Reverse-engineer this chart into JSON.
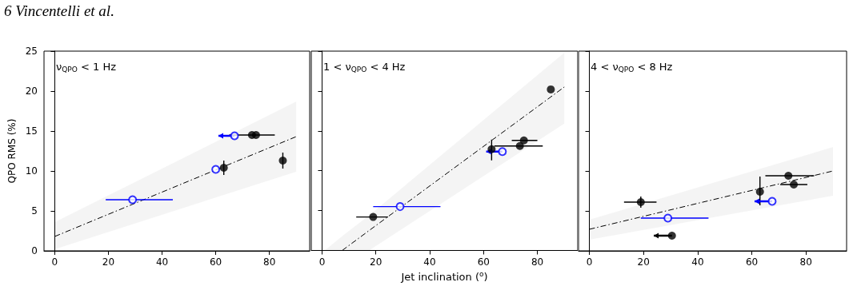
{
  "chart_data": [
    {
      "type": "scatter",
      "title": "ν$_{QPO}$ < 1 Hz",
      "ylabel": "QPO RMS (%)",
      "annotations": [
        "6 Vincentelli et al."
      ],
      "xlim": [
        -4,
        95
      ],
      "ylim": [
        0,
        25
      ],
      "xticks": [
        0,
        20,
        40,
        60,
        80
      ],
      "yticks": [
        0,
        5,
        10,
        15,
        20,
        25
      ],
      "series": [
        {
          "color": "#000000",
          "marker": "circle",
          "x": [
            63,
            73.5,
            75,
            85
          ],
          "values": [
            10.4,
            14.5,
            14.5,
            11.3
          ],
          "errors": [
            0.9,
            null,
            null,
            1.0
          ],
          "xerrors": [
            null,
            [
              65,
              82
            ],
            null,
            null
          ]
        },
        {
          "color": "#0000ff",
          "marker": "circle",
          "x": [
            29,
            60,
            67
          ],
          "values": [
            6.4,
            10.2,
            14.4
          ],
          "xerrors": [
            [
              19,
              44
            ],
            null,
            [
              61,
              67
            ]
          ]
        },
        {
          "type": "line",
          "color": "#000000",
          "line_style": "dashed",
          "x": [
            0,
            90
          ],
          "values": [
            1.8,
            14.3
          ],
          "lower": [
            0.2,
            9.9
          ],
          "upper": [
            3.6,
            18.7
          ]
        }
      ]
    },
    {
      "type": "scatter",
      "title": "1 < ν$_{QPO}$ < 4 Hz",
      "xlabel": "Jet inclination ($^{o}$)",
      "tick_labels": "x",
      "xlim": [
        -4,
        95
      ],
      "ylim": [
        0,
        25
      ],
      "xticks": [
        0,
        20,
        40,
        60,
        80
      ],
      "yticks": [
        0,
        5,
        10,
        15,
        20,
        25
      ],
      "series": [
        {
          "color": "#000000",
          "marker": "circle",
          "x": [
            19,
            63,
            73.5,
            75,
            85
          ],
          "values": [
            4.2,
            12.7,
            13.1,
            13.8,
            20.2
          ],
          "errors": [
            null,
            [
              11.3,
              13.9
            ],
            null,
            null,
            null
          ],
          "xerrors": [
            [
              12.7,
              24.5
            ],
            null,
            [
              64,
              82
            ],
            [
              70.5,
              80
            ],
            null
          ]
        },
        {
          "color": "#0000ff",
          "marker": "circle",
          "x": [
            29,
            67
          ],
          "values": [
            5.5,
            12.4
          ],
          "xerrors": [
            [
              19,
              44
            ],
            [
              61,
              67
            ]
          ]
        },
        {
          "type": "line",
          "color": "#000000",
          "line_style": "dashed",
          "x": [
            1,
            7.5,
            17.5,
            90
          ],
          "values": [
            null,
            0,
            2.5,
            20.5
          ],
          "lower": [
            0,
            0,
            0,
            15.9
          ],
          "upper": [
            0,
            1.8,
            4.4,
            24.8
          ]
        }
      ]
    },
    {
      "type": "scatter",
      "title": "4 < ν$_{QPO}$ < 8 Hz",
      "tick_labels": "x",
      "xlim": [
        -4,
        95
      ],
      "ylim": [
        0,
        25
      ],
      "xticks": [
        0,
        20,
        40,
        60,
        80
      ],
      "yticks": [
        0,
        5,
        10,
        15,
        20,
        25
      ],
      "series": [
        {
          "color": "#000000",
          "marker": "circle",
          "x": [
            19,
            30.5,
            63,
            73.5,
            75.5
          ],
          "values": [
            6.1,
            1.9,
            7.4,
            9.4,
            8.3
          ],
          "errors": [
            0.7,
            null,
            [
              5.7,
              9.3
            ],
            null,
            null
          ],
          "xerrors": [
            [
              12.8,
              24.8
            ],
            [
              23.8,
              30.5
            ],
            null,
            [
              65,
              83
            ],
            [
              70.5,
              80.5
            ]
          ]
        },
        {
          "color": "#0000ff",
          "marker": "circle",
          "x": [
            29,
            67.5
          ],
          "values": [
            4.1,
            6.2
          ],
          "xerrors": [
            [
              19,
              44
            ],
            [
              61,
              67.5
            ]
          ]
        },
        {
          "type": "line",
          "color": "#000000",
          "line_style": "dashed",
          "x": [
            0,
            90
          ],
          "values": [
            2.7,
            10.0
          ],
          "lower": [
            1.4,
            6.9
          ],
          "upper": [
            3.9,
            13.0
          ]
        }
      ]
    }
  ]
}
